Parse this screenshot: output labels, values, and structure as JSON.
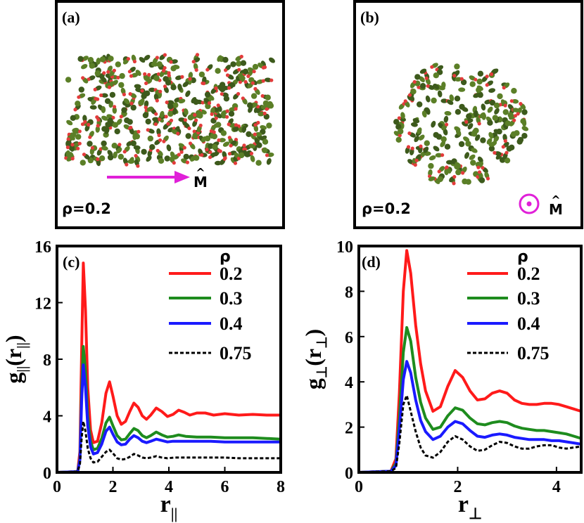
{
  "panels": {
    "a": {
      "label": "(a)",
      "rho_text": "ρ=0.2",
      "direction_label": "M",
      "hat": "^",
      "arrow_color": "#e020d8"
    },
    "b": {
      "label": "(b)",
      "rho_text": "ρ=0.2",
      "direction_label": "M",
      "hat": "^",
      "symbol_color": "#e020d8"
    }
  },
  "colors": {
    "particle_dark": "#3d5a1c",
    "particle_mid": "#5b7f27",
    "particle_tip": "#e33b3b"
  },
  "chart_data": [
    {
      "panel_label": "(c)",
      "type": "line",
      "xlabel_main": "r",
      "xlabel_sub": "||",
      "ylabel_main": "g",
      "ylabel_sub": "||",
      "ylabel_arg": "r",
      "xlim": [
        0,
        8
      ],
      "ylim": [
        0,
        16
      ],
      "xticks": [
        0,
        2,
        4,
        6,
        8
      ],
      "yticks": [
        0,
        4,
        8,
        12,
        16
      ],
      "legend_title": "ρ",
      "legend_position": "top-right",
      "series": [
        {
          "name": "0.2",
          "color": "#ff1a1a",
          "style": "solid",
          "x": [
            0,
            0.74,
            0.82,
            0.88,
            0.94,
            1.02,
            1.1,
            1.2,
            1.3,
            1.45,
            1.6,
            1.75,
            1.88,
            2.0,
            2.15,
            2.3,
            2.45,
            2.6,
            2.75,
            2.9,
            3.05,
            3.2,
            3.35,
            3.55,
            3.75,
            3.95,
            4.15,
            4.35,
            4.55,
            4.75,
            5.0,
            5.3,
            5.6,
            6.0,
            6.5,
            7.0,
            7.5,
            8.0
          ],
          "y": [
            0,
            0.05,
            1.5,
            8.5,
            14.8,
            11.5,
            6.0,
            3.0,
            2.1,
            2.2,
            3.5,
            5.6,
            6.4,
            5.4,
            4.0,
            3.4,
            3.6,
            4.3,
            4.9,
            4.6,
            4.0,
            3.75,
            4.05,
            4.55,
            4.3,
            3.95,
            4.1,
            4.4,
            4.25,
            4.05,
            4.2,
            4.2,
            4.05,
            4.15,
            4.05,
            4.1,
            4.05,
            4.05
          ]
        },
        {
          "name": "0.3",
          "color": "#1e8c1e",
          "style": "solid",
          "x": [
            0,
            0.74,
            0.82,
            0.88,
            0.94,
            1.02,
            1.1,
            1.2,
            1.3,
            1.45,
            1.6,
            1.75,
            1.88,
            2.0,
            2.15,
            2.3,
            2.45,
            2.6,
            2.75,
            2.9,
            3.05,
            3.2,
            3.35,
            3.55,
            3.75,
            3.95,
            4.15,
            4.35,
            4.6,
            5.0,
            5.5,
            6.0,
            6.5,
            7.0,
            7.5,
            8.0
          ],
          "y": [
            0,
            0.05,
            1.0,
            5.8,
            8.9,
            7.2,
            4.0,
            2.2,
            1.6,
            1.7,
            2.4,
            3.5,
            3.9,
            3.3,
            2.6,
            2.3,
            2.35,
            2.75,
            3.1,
            2.95,
            2.6,
            2.45,
            2.6,
            2.85,
            2.65,
            2.5,
            2.55,
            2.65,
            2.55,
            2.5,
            2.5,
            2.45,
            2.45,
            2.45,
            2.4,
            2.35
          ]
        },
        {
          "name": "0.4",
          "color": "#1a1aff",
          "style": "solid",
          "x": [
            0,
            0.74,
            0.82,
            0.88,
            0.94,
            1.02,
            1.1,
            1.2,
            1.3,
            1.45,
            1.6,
            1.75,
            1.88,
            2.0,
            2.15,
            2.3,
            2.45,
            2.6,
            2.75,
            2.9,
            3.05,
            3.2,
            3.35,
            3.55,
            3.75,
            3.95,
            4.15,
            4.4,
            5.0,
            5.5,
            6.0,
            6.5,
            7.0,
            7.5,
            8.0
          ],
          "y": [
            0,
            0.05,
            0.9,
            5.0,
            7.6,
            6.0,
            3.3,
            1.8,
            1.3,
            1.4,
            2.0,
            2.9,
            3.2,
            2.7,
            2.15,
            1.95,
            2.0,
            2.35,
            2.6,
            2.45,
            2.2,
            2.1,
            2.2,
            2.35,
            2.25,
            2.15,
            2.2,
            2.2,
            2.2,
            2.2,
            2.15,
            2.15,
            2.15,
            2.15,
            2.15
          ]
        },
        {
          "name": "0.75",
          "color": "#000000",
          "style": "dashed",
          "x": [
            0,
            0.74,
            0.82,
            0.88,
            0.94,
            1.02,
            1.1,
            1.2,
            1.3,
            1.45,
            1.6,
            1.75,
            1.88,
            2.0,
            2.15,
            2.3,
            2.45,
            2.6,
            2.75,
            2.9,
            3.05,
            3.2,
            3.35,
            3.55,
            3.75,
            3.95,
            4.2,
            4.5,
            5.0,
            5.5,
            6.0,
            6.5,
            7.0,
            7.5,
            8.0
          ],
          "y": [
            0,
            0.05,
            0.6,
            2.4,
            3.6,
            2.9,
            1.7,
            1.0,
            0.7,
            0.75,
            1.1,
            1.45,
            1.6,
            1.35,
            1.0,
            0.9,
            0.95,
            1.1,
            1.3,
            1.2,
            1.05,
            1.0,
            1.05,
            1.15,
            1.05,
            1.0,
            1.05,
            1.05,
            1.05,
            1.05,
            1.05,
            1.0,
            1.0,
            1.0,
            1.0
          ]
        }
      ]
    },
    {
      "panel_label": "(d)",
      "type": "line",
      "xlabel_main": "r",
      "xlabel_sub": "⊥",
      "ylabel_main": "g",
      "ylabel_sub": "⊥",
      "ylabel_arg": "r",
      "xlim": [
        0,
        4.5
      ],
      "ylim": [
        0,
        10
      ],
      "xticks": [
        0,
        2,
        4
      ],
      "yticks": [
        0,
        2,
        4,
        6,
        8,
        10
      ],
      "legend_title": "ρ",
      "legend_position": "top-right",
      "series": [
        {
          "name": "0.2",
          "color": "#ff1a1a",
          "style": "solid",
          "x": [
            0,
            0.65,
            0.75,
            0.82,
            0.9,
            0.97,
            1.05,
            1.15,
            1.25,
            1.35,
            1.5,
            1.65,
            1.8,
            1.95,
            2.1,
            2.25,
            2.4,
            2.55,
            2.7,
            2.85,
            3.0,
            3.15,
            3.3,
            3.45,
            3.6,
            3.75,
            3.9,
            4.05,
            4.2,
            4.35,
            4.5
          ],
          "y": [
            0,
            0.05,
            0.6,
            3.5,
            8.0,
            9.8,
            8.8,
            6.5,
            4.8,
            3.6,
            2.7,
            2.9,
            3.8,
            4.5,
            4.2,
            3.6,
            3.2,
            3.25,
            3.5,
            3.6,
            3.5,
            3.2,
            3.05,
            3.0,
            3.0,
            3.05,
            3.05,
            3.0,
            2.9,
            2.8,
            2.7
          ]
        },
        {
          "name": "0.3",
          "color": "#1e8c1e",
          "style": "solid",
          "x": [
            0,
            0.65,
            0.75,
            0.82,
            0.9,
            0.97,
            1.05,
            1.15,
            1.25,
            1.35,
            1.5,
            1.65,
            1.8,
            1.95,
            2.1,
            2.25,
            2.4,
            2.55,
            2.7,
            2.85,
            3.0,
            3.15,
            3.3,
            3.45,
            3.6,
            3.75,
            3.9,
            4.05,
            4.2,
            4.35,
            4.5
          ],
          "y": [
            0,
            0.05,
            0.4,
            2.4,
            5.3,
            6.4,
            5.8,
            4.2,
            3.1,
            2.4,
            1.9,
            2.0,
            2.5,
            2.85,
            2.75,
            2.4,
            2.15,
            2.1,
            2.2,
            2.25,
            2.2,
            2.05,
            1.95,
            1.9,
            1.85,
            1.85,
            1.8,
            1.75,
            1.7,
            1.6,
            1.5
          ]
        },
        {
          "name": "0.4",
          "color": "#1a1aff",
          "style": "solid",
          "x": [
            0,
            0.65,
            0.75,
            0.82,
            0.9,
            0.97,
            1.05,
            1.15,
            1.25,
            1.35,
            1.5,
            1.65,
            1.8,
            1.95,
            2.1,
            2.25,
            2.4,
            2.55,
            2.7,
            2.85,
            3.0,
            3.15,
            3.3,
            3.45,
            3.6,
            3.75,
            3.9,
            4.05,
            4.2,
            4.35,
            4.5
          ],
          "y": [
            0,
            0.05,
            0.3,
            1.9,
            4.1,
            4.9,
            4.4,
            3.2,
            2.3,
            1.8,
            1.45,
            1.6,
            2.0,
            2.25,
            2.15,
            1.85,
            1.6,
            1.55,
            1.65,
            1.7,
            1.65,
            1.55,
            1.5,
            1.45,
            1.45,
            1.45,
            1.4,
            1.4,
            1.35,
            1.3,
            1.25
          ]
        },
        {
          "name": "0.75",
          "color": "#000000",
          "style": "dashed",
          "x": [
            0,
            0.65,
            0.75,
            0.82,
            0.9,
            0.97,
            1.05,
            1.15,
            1.25,
            1.35,
            1.5,
            1.65,
            1.8,
            1.95,
            2.1,
            2.25,
            2.4,
            2.55,
            2.7,
            2.85,
            3.0,
            3.15,
            3.3,
            3.45,
            3.6,
            3.75,
            3.9,
            4.05,
            4.2,
            4.35,
            4.5
          ],
          "y": [
            0,
            0.05,
            0.2,
            1.3,
            3.0,
            3.4,
            2.7,
            1.8,
            1.1,
            0.75,
            0.65,
            0.9,
            1.35,
            1.6,
            1.45,
            1.15,
            0.95,
            1.0,
            1.2,
            1.35,
            1.3,
            1.15,
            1.05,
            1.05,
            1.15,
            1.2,
            1.2,
            1.1,
            1.05,
            1.1,
            1.15
          ]
        }
      ]
    }
  ]
}
